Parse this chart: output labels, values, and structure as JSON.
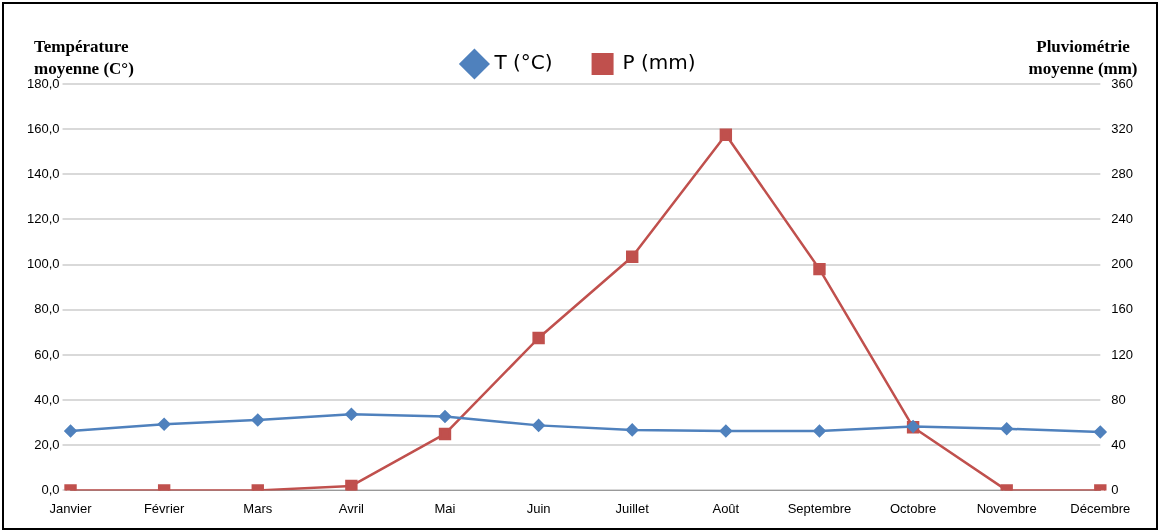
{
  "chart_data": {
    "type": "line",
    "ylabel": "Température moyenne (C°)",
    "y2label": "Pluviométrie moyenne (mm)",
    "categories": [
      "Janvier",
      "Février",
      "Mars",
      "Avril",
      "Mai",
      "Juin",
      "Juillet",
      "Août",
      "Septembre",
      "Octobre",
      "Novembre",
      "Décembre"
    ],
    "series": [
      {
        "name": "T (°C)",
        "color": "#4f81bd",
        "marker": "diamond",
        "values": [
          26.3,
          29.3,
          31.2,
          33.7,
          32.7,
          28.8,
          26.8,
          26.3,
          26.3,
          28.3,
          27.3,
          25.9
        ]
      },
      {
        "name": "P (mm)",
        "color": "#c0504d",
        "marker": "square",
        "axis": "y2",
        "values": [
          0,
          0,
          0,
          4,
          50,
          135,
          207,
          315,
          196,
          56,
          0,
          0
        ]
      }
    ],
    "ylim": [
      0,
      180
    ],
    "yticks": [
      {
        "value": 0,
        "label": "0,0"
      },
      {
        "value": 20,
        "label": "20,0"
      },
      {
        "value": 40,
        "label": "40,0"
      },
      {
        "value": 60,
        "label": "60,0"
      },
      {
        "value": 80,
        "label": "80,0"
      },
      {
        "value": 100,
        "label": "100,0"
      },
      {
        "value": 120,
        "label": "120,0"
      },
      {
        "value": 140,
        "label": "140,0"
      },
      {
        "value": 160,
        "label": "160,0"
      },
      {
        "value": 180,
        "label": "180,0"
      }
    ],
    "y2lim": [
      0,
      360
    ],
    "y2ticks": [
      0,
      40,
      80,
      120,
      160,
      200,
      240,
      280,
      320,
      360
    ],
    "grid": "y",
    "legend": "top"
  }
}
